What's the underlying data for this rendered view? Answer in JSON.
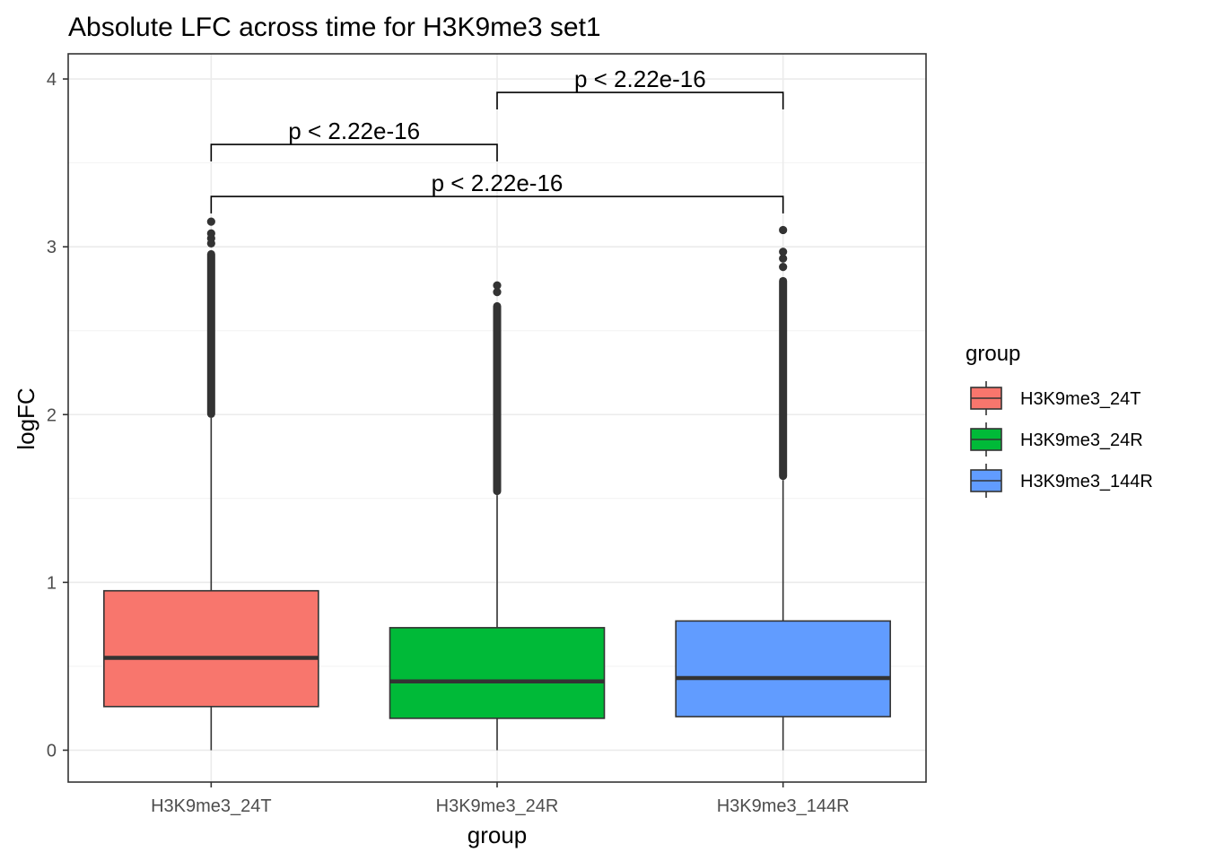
{
  "chart_data": {
    "type": "boxplot",
    "title": "Absolute LFC across time for H3K9me3 set1",
    "xlabel": "group",
    "ylabel": "logFC",
    "ylim": [
      -0.19,
      4.15
    ],
    "yticks": [
      0,
      1,
      2,
      3,
      4
    ],
    "grid": true,
    "categories": [
      "H3K9me3_24T",
      "H3K9me3_24R",
      "H3K9me3_144R"
    ],
    "series": [
      {
        "name": "H3K9me3_24T",
        "color": "#F8766D",
        "min": 0.0,
        "q1": 0.26,
        "median": 0.55,
        "q3": 0.95,
        "whisker_high": 1.98,
        "outliers_range": [
          1.98,
          2.98
        ],
        "outliers_extra": [
          3.02,
          3.05,
          3.08,
          3.15
        ]
      },
      {
        "name": "H3K9me3_24R",
        "color": "#00BA38",
        "min": 0.0,
        "q1": 0.19,
        "median": 0.41,
        "q3": 0.73,
        "whisker_high": 1.52,
        "outliers_range": [
          1.52,
          2.67
        ],
        "outliers_extra": [
          2.73,
          2.77
        ]
      },
      {
        "name": "H3K9me3_144R",
        "color": "#619CFF",
        "min": 0.0,
        "q1": 0.2,
        "median": 0.43,
        "q3": 0.77,
        "whisker_high": 1.61,
        "outliers_range": [
          1.61,
          2.82
        ],
        "outliers_extra": [
          2.88,
          2.93,
          2.97,
          3.1
        ]
      }
    ],
    "comparisons": [
      {
        "from": "H3K9me3_24R",
        "to": "H3K9me3_144R",
        "y": 3.92,
        "label": "p < 2.22e-16"
      },
      {
        "from": "H3K9me3_24T",
        "to": "H3K9me3_24R",
        "y": 3.61,
        "label": "p < 2.22e-16"
      },
      {
        "from": "H3K9me3_24T",
        "to": "H3K9me3_144R",
        "y": 3.3,
        "label": "p < 2.22e-16"
      }
    ],
    "legend": {
      "title": "group",
      "position": "right",
      "entries": [
        "H3K9me3_24T",
        "H3K9me3_24R",
        "H3K9me3_144R"
      ]
    }
  }
}
